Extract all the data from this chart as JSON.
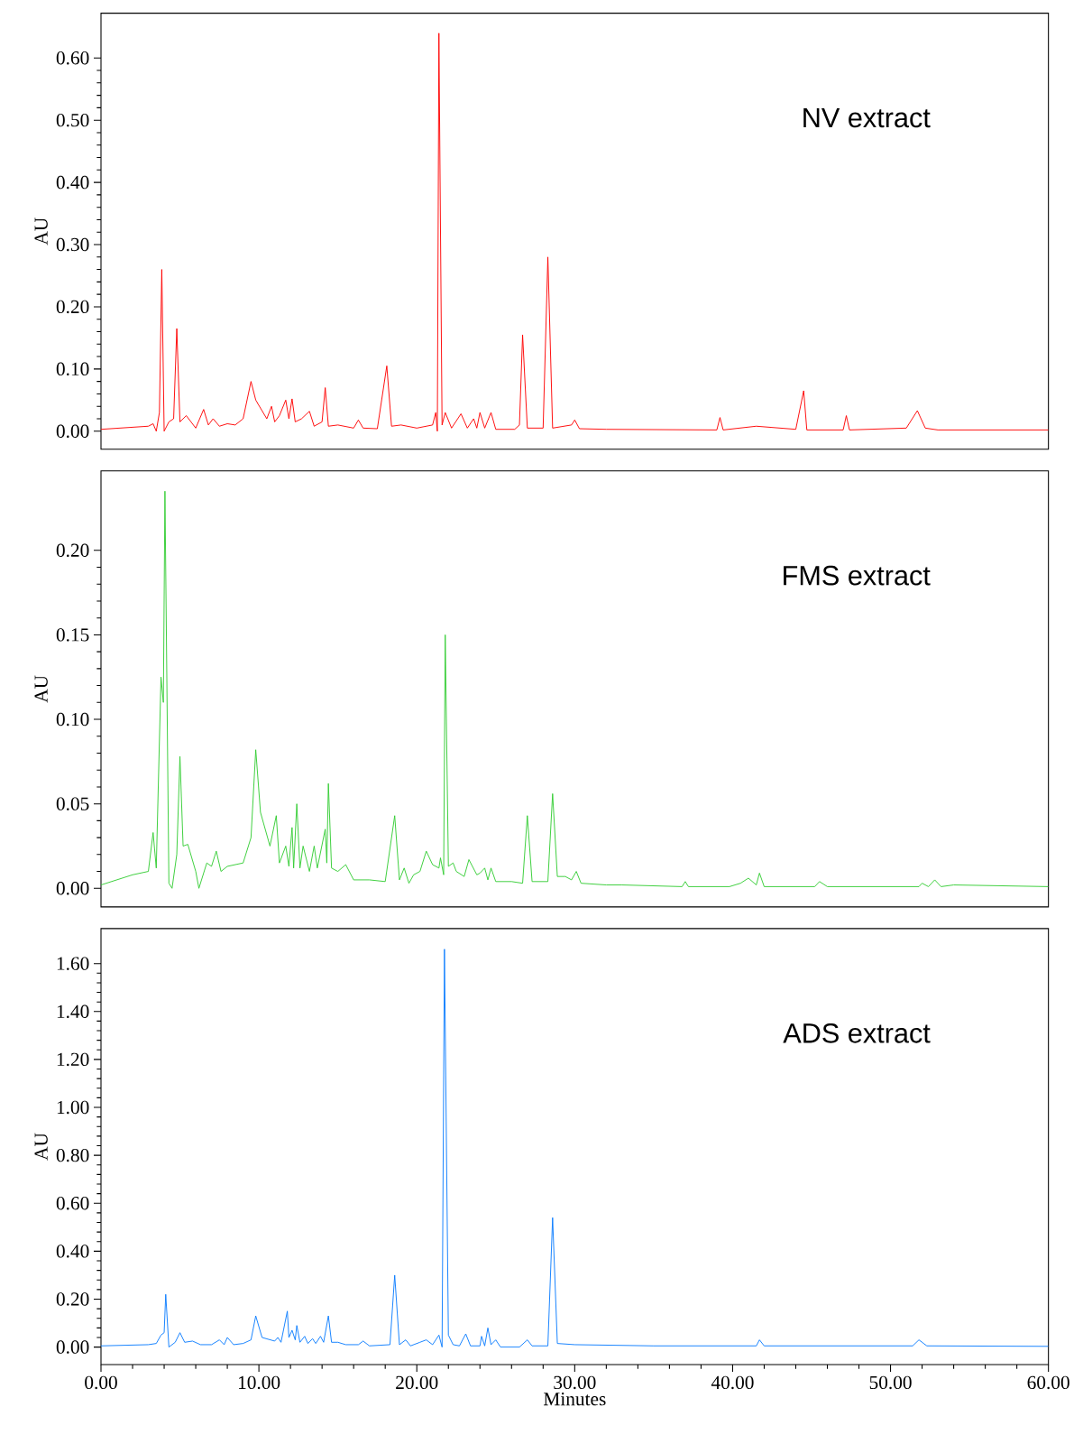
{
  "chart_data": [
    {
      "type": "line",
      "annotations": [
        "NV extract"
      ],
      "ylabel": "AU",
      "xlim": [
        0,
        60
      ],
      "ylim": [
        -0.029,
        0.672
      ],
      "tick_labels": "y",
      "yticks": [
        {
          "value": 0,
          "label": "0.00"
        },
        {
          "value": 0.1,
          "label": "0.10"
        },
        {
          "value": 0.2,
          "label": "0.20"
        },
        {
          "value": 0.3,
          "label": "0.30"
        },
        {
          "value": 0.4,
          "label": "0.40"
        },
        {
          "value": 0.5,
          "label": "0.50"
        },
        {
          "value": 0.6,
          "label": "0.60"
        }
      ],
      "series": [
        {
          "color": "#ff0000",
          "x": [
            0,
            3.0,
            3.3,
            3.5,
            3.7,
            3.85,
            4.0,
            4.3,
            4.6,
            4.8,
            5.0,
            5.4,
            6.0,
            6.5,
            6.8,
            7.1,
            7.5,
            8.0,
            8.5,
            9.0,
            9.5,
            9.8,
            10.5,
            10.8,
            11.0,
            11.3,
            11.7,
            11.9,
            12.1,
            12.3,
            12.7,
            13.2,
            13.5,
            14.0,
            14.2,
            14.4,
            15.0,
            16.0,
            16.3,
            16.6,
            17.5,
            18.1,
            18.4,
            19.0,
            20.0,
            21.0,
            21.2,
            21.3,
            21.4,
            21.6,
            21.8,
            22.2,
            22.8,
            23.2,
            23.6,
            23.8,
            24.0,
            24.3,
            24.7,
            25.0,
            26.2,
            26.5,
            26.7,
            27.0,
            28.0,
            28.3,
            28.6,
            29.8,
            30.0,
            30.3,
            32,
            39.0,
            39.2,
            39.4,
            41.5,
            44.0,
            44.5,
            44.7,
            47.0,
            47.2,
            47.4,
            51.0,
            51.7,
            52.2,
            53,
            60
          ],
          "values": [
            0.003,
            0.008,
            0.012,
            0.0,
            0.03,
            0.26,
            0.0,
            0.015,
            0.02,
            0.165,
            0.015,
            0.025,
            0.005,
            0.035,
            0.01,
            0.02,
            0.008,
            0.012,
            0.01,
            0.02,
            0.08,
            0.05,
            0.02,
            0.04,
            0.015,
            0.025,
            0.05,
            0.02,
            0.052,
            0.015,
            0.02,
            0.032,
            0.008,
            0.015,
            0.07,
            0.008,
            0.01,
            0.005,
            0.018,
            0.005,
            0.004,
            0.105,
            0.008,
            0.01,
            0.005,
            0.01,
            0.03,
            0.0,
            0.64,
            0.01,
            0.03,
            0.005,
            0.028,
            0.005,
            0.02,
            0.005,
            0.03,
            0.005,
            0.03,
            0.003,
            0.003,
            0.01,
            0.155,
            0.005,
            0.005,
            0.28,
            0.005,
            0.01,
            0.018,
            0.004,
            0.003,
            0.002,
            0.022,
            0.002,
            0.008,
            0.003,
            0.065,
            0.002,
            0.002,
            0.025,
            0.002,
            0.005,
            0.033,
            0.005,
            0.002,
            0.002
          ]
        }
      ]
    },
    {
      "type": "line",
      "annotations": [
        "FMS extract"
      ],
      "ylabel": "AU",
      "xlim": [
        0,
        60
      ],
      "ylim": [
        -0.011,
        0.247
      ],
      "tick_labels": "y",
      "yticks": [
        {
          "value": 0,
          "label": "0.00"
        },
        {
          "value": 0.05,
          "label": "0.05"
        },
        {
          "value": 0.1,
          "label": "0.10"
        },
        {
          "value": 0.15,
          "label": "0.15"
        },
        {
          "value": 0.2,
          "label": "0.20"
        }
      ],
      "series": [
        {
          "color": "#33cc33",
          "x": [
            0,
            2,
            3.0,
            3.3,
            3.5,
            3.8,
            3.95,
            4.05,
            4.3,
            4.5,
            4.8,
            5.0,
            5.2,
            5.5,
            6.0,
            6.2,
            6.7,
            7.0,
            7.3,
            7.6,
            8.0,
            9.0,
            9.5,
            9.8,
            10.1,
            10.7,
            11.1,
            11.3,
            11.7,
            11.9,
            12.1,
            12.2,
            12.4,
            12.6,
            12.8,
            13.2,
            13.5,
            13.7,
            14.2,
            14.3,
            14.4,
            14.6,
            15.0,
            15.5,
            16.0,
            17.0,
            18.0,
            18.6,
            18.9,
            19.2,
            19.5,
            19.8,
            20.2,
            20.6,
            21.0,
            21.4,
            21.5,
            21.7,
            21.8,
            22.0,
            22.3,
            22.5,
            23.0,
            23.3,
            23.8,
            24.0,
            24.3,
            24.5,
            24.7,
            25.0,
            26.0,
            26.7,
            27.0,
            27.3,
            28.3,
            28.6,
            28.9,
            29.4,
            29.8,
            30.1,
            30.4,
            32,
            33,
            36.8,
            37.0,
            37.2,
            39.8,
            40.5,
            41.0,
            41.5,
            41.7,
            42,
            45.2,
            45.5,
            46,
            51.8,
            52.0,
            52.4,
            52.8,
            53.2,
            54,
            60
          ],
          "values": [
            0.002,
            0.008,
            0.01,
            0.033,
            0.012,
            0.125,
            0.11,
            0.235,
            0.003,
            0.0,
            0.02,
            0.078,
            0.025,
            0.026,
            0.01,
            0.0,
            0.015,
            0.013,
            0.022,
            0.01,
            0.013,
            0.015,
            0.03,
            0.082,
            0.045,
            0.025,
            0.043,
            0.015,
            0.025,
            0.013,
            0.036,
            0.012,
            0.05,
            0.012,
            0.025,
            0.01,
            0.025,
            0.012,
            0.035,
            0.015,
            0.062,
            0.012,
            0.01,
            0.014,
            0.005,
            0.005,
            0.004,
            0.043,
            0.005,
            0.012,
            0.003,
            0.008,
            0.01,
            0.022,
            0.014,
            0.012,
            0.018,
            0.008,
            0.15,
            0.013,
            0.015,
            0.01,
            0.007,
            0.017,
            0.008,
            0.009,
            0.012,
            0.005,
            0.012,
            0.004,
            0.004,
            0.003,
            0.043,
            0.004,
            0.004,
            0.056,
            0.007,
            0.007,
            0.005,
            0.01,
            0.003,
            0.002,
            0.002,
            0.001,
            0.004,
            0.001,
            0.001,
            0.003,
            0.006,
            0.002,
            0.009,
            0.001,
            0.001,
            0.004,
            0.001,
            0.001,
            0.003,
            0.001,
            0.005,
            0.001,
            0.002,
            0.001
          ]
        }
      ]
    },
    {
      "type": "line",
      "annotations": [
        "ADS extract"
      ],
      "ylabel": "AU",
      "xlabel": "Minutes",
      "xlim": [
        0,
        60
      ],
      "ylim": [
        -0.073,
        1.746
      ],
      "xticks": [
        {
          "value": 0,
          "label": "0.00"
        },
        {
          "value": 10,
          "label": "10.00"
        },
        {
          "value": 20,
          "label": "20.00"
        },
        {
          "value": 30,
          "label": "30.00"
        },
        {
          "value": 40,
          "label": "40.00"
        },
        {
          "value": 50,
          "label": "50.00"
        },
        {
          "value": 60,
          "label": "60.00"
        }
      ],
      "yticks": [
        {
          "value": 0,
          "label": "0.00"
        },
        {
          "value": 0.2,
          "label": "0.20"
        },
        {
          "value": 0.4,
          "label": "0.40"
        },
        {
          "value": 0.6,
          "label": "0.60"
        },
        {
          "value": 0.8,
          "label": "0.80"
        },
        {
          "value": 1.0,
          "label": "1.00"
        },
        {
          "value": 1.2,
          "label": "1.20"
        },
        {
          "value": 1.4,
          "label": "1.40"
        },
        {
          "value": 1.6,
          "label": "1.60"
        }
      ],
      "series": [
        {
          "color": "#0a7cff",
          "x": [
            0,
            3.0,
            3.5,
            3.8,
            4.0,
            4.1,
            4.3,
            4.7,
            5.0,
            5.3,
            5.8,
            6.3,
            7.0,
            7.5,
            7.8,
            8.0,
            8.4,
            9.0,
            9.5,
            9.8,
            10.2,
            11.0,
            11.2,
            11.4,
            11.8,
            11.9,
            12.1,
            12.3,
            12.4,
            12.6,
            12.9,
            13.1,
            13.4,
            13.6,
            13.9,
            14.1,
            14.4,
            14.6,
            15.0,
            15.5,
            16.3,
            16.6,
            17,
            18.3,
            18.6,
            18.9,
            19.3,
            19.6,
            20.2,
            20.6,
            21.0,
            21.4,
            21.6,
            21.75,
            22.0,
            22.3,
            22.7,
            23.1,
            23.4,
            24.0,
            24.1,
            24.3,
            24.5,
            24.7,
            25.0,
            25.3,
            26.5,
            27.0,
            27.3,
            28.3,
            28.6,
            28.9,
            30,
            35,
            41.5,
            41.7,
            42,
            51.4,
            51.8,
            52.3,
            60
          ],
          "values": [
            0.005,
            0.01,
            0.015,
            0.05,
            0.06,
            0.22,
            0.0,
            0.02,
            0.06,
            0.02,
            0.025,
            0.01,
            0.01,
            0.03,
            0.01,
            0.04,
            0.01,
            0.015,
            0.03,
            0.13,
            0.04,
            0.025,
            0.04,
            0.02,
            0.15,
            0.04,
            0.07,
            0.03,
            0.09,
            0.02,
            0.045,
            0.015,
            0.035,
            0.015,
            0.045,
            0.02,
            0.13,
            0.02,
            0.02,
            0.01,
            0.01,
            0.025,
            0.005,
            0.01,
            0.3,
            0.01,
            0.03,
            0.005,
            0.02,
            0.03,
            0.01,
            0.05,
            0.0,
            1.66,
            0.05,
            0.01,
            0.005,
            0.055,
            0.005,
            0.005,
            0.045,
            0.005,
            0.08,
            0.01,
            0.03,
            0.0,
            0.0,
            0.03,
            0.005,
            0.005,
            0.54,
            0.015,
            0.01,
            0.005,
            0.005,
            0.03,
            0.005,
            0.005,
            0.03,
            0.005,
            0.003
          ]
        }
      ]
    }
  ]
}
